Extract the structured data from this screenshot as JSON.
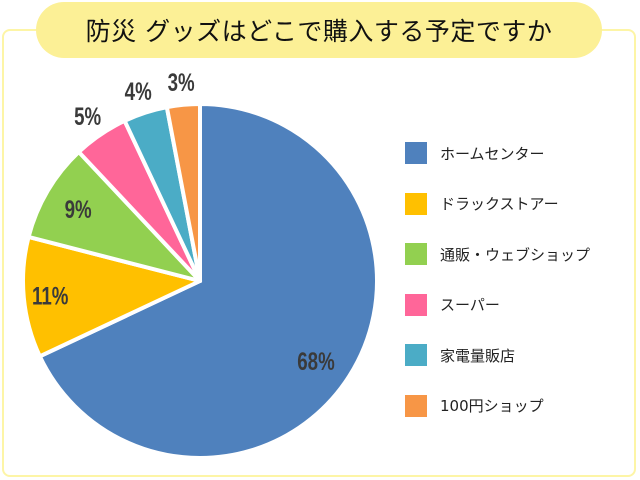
{
  "title": "防災 グッズはどこで購入する予定ですか",
  "chart_data": {
    "type": "pie",
    "title": "防災 グッズはどこで購入する予定ですか",
    "categories": [
      "ホームセンター",
      "ドラックストアー",
      "通販・ウェブショップ",
      "スーパー",
      "家電量販店",
      "100円ショップ"
    ],
    "values": [
      68,
      11,
      9,
      5,
      4,
      3
    ],
    "labels": [
      "68%",
      "11%",
      "9%",
      "5%",
      "4%",
      "3%"
    ],
    "colors": [
      "#4f81bd",
      "#ffc000",
      "#92d050",
      "#ff6699",
      "#4bacc6",
      "#f79646"
    ],
    "legend_position": "right",
    "start_angle": "12 o'clock, clockwise"
  },
  "legend": [
    {
      "label": "ホームセンター",
      "color": "#4f81bd"
    },
    {
      "label": "ドラックストアー",
      "color": "#ffc000"
    },
    {
      "label": "通販・ウェブショップ",
      "color": "#92d050"
    },
    {
      "label": "スーパー",
      "color": "#ff6699"
    },
    {
      "label": "家電量販店",
      "color": "#4bacc6"
    },
    {
      "label": "100円ショップ",
      "color": "#f79646"
    }
  ]
}
